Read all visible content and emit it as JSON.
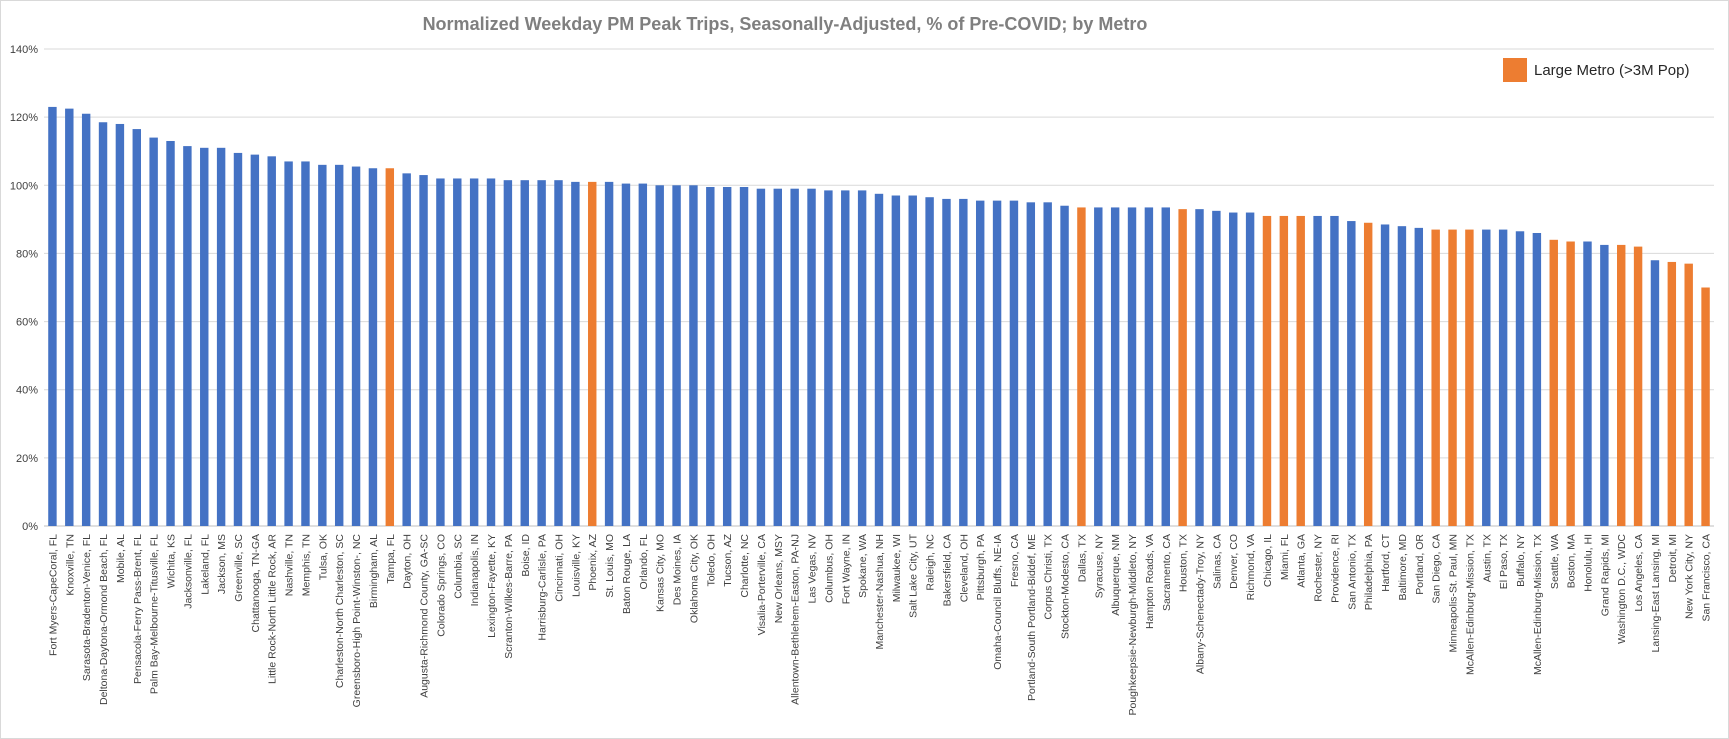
{
  "chart_data": {
    "type": "bar",
    "title": "Normalized Weekday PM Peak Trips, Seasonally-Adjusted, % of Pre-COVID; by Metro",
    "xlabel": "",
    "ylabel": "",
    "ylim": [
      0,
      140
    ],
    "yticks": [
      0,
      20,
      40,
      60,
      80,
      100,
      120,
      140
    ],
    "ytick_suffix": "%",
    "grid": true,
    "legend": {
      "placement": "top-right",
      "label": "Large Metro (>3M Pop)",
      "color": "#ED7D31"
    },
    "colors": {
      "default": "#4472C4",
      "large": "#ED7D31"
    },
    "categories": [
      "Fort Myers-CapeCoral, FL",
      "Knoxville, TN",
      "Sarasota-Bradenton-Venice, FL",
      "Deltona-Daytona-Ormond Beach, FL",
      "Mobile, AL",
      "Pensacola-Ferry Pass-Brent, FL",
      "Palm Bay-Melbourne-Titusville, FL",
      "Wichita, KS",
      "Jacksonville, FL",
      "Lakeland, FL",
      "Jackson, MS",
      "Greenville, SC",
      "Chattanooga, TN-GA",
      "Little Rock-North Little Rock, AR",
      "Nashville, TN",
      "Memphis, TN",
      "Tulsa, OK",
      "Charleston-North Charleston, SC",
      "Greensboro-High Point-Winston-, NC",
      "Birmingham, AL",
      "Tampa, FL",
      "Dayton, OH",
      "Augusta-Richmond County, GA-SC",
      "Colorado Springs, CO",
      "Columbia, SC",
      "Indianapolis, IN",
      "Lexington-Fayette, KY",
      "Scranton-Wilkes-Barre, PA",
      "Boise, ID",
      "Harrisburg-Carlisle, PA",
      "Cincinnati, OH",
      "Louisville, KY",
      "Phoenix, AZ",
      "St. Louis, MO",
      "Baton Rouge, LA",
      "Orlando, FL",
      "Kansas City, MO",
      "Des Moines, IA",
      "Oklahoma City, OK",
      "Toledo, OH",
      "Tucson, AZ",
      "Charlotte, NC",
      "Visalia-Porterville, CA",
      "New Orleans, MSY",
      "Allentown-Bethlehem-Easton, PA-NJ",
      "Las Vegas, NV",
      "Columbus, OH",
      "Fort Wayne, IN",
      "Spokane, WA",
      "Manchester-Nashua, NH",
      "Milwaukee, WI",
      "Salt Lake City, UT",
      "Raleigh, NC",
      "Bakersfield, CA",
      "Cleveland, OH",
      "Pittsburgh, PA",
      "Omaha-Council Bluffs, NE-IA",
      "Fresno, CA",
      "Portland-South Portland-Biddef, ME",
      "Corpus Christi, TX",
      "Stockton-Modesto, CA",
      "Dallas, TX",
      "Syracuse, NY",
      "Albuquerque, NM",
      "Poughkeepsie-Newburgh-Middleto, NY",
      "Hampton Roads, VA",
      "Sacramento, CA",
      "Houston, TX",
      "Albany-Schenectady-Troy, NY",
      "Salinas, CA",
      "Denver, CO",
      "Richmond, VA",
      "Chicago, IL",
      "Miami, FL",
      "Atlanta, GA",
      "Rochester, NY",
      "Providence, RI",
      "San Antonio, TX",
      "Philadelphia, PA",
      "Hartford, CT",
      "Baltimore, MD",
      "Portland, OR",
      "San Diego, CA",
      "Minneapolis-St. Paul, MN",
      "McAllen-Edinburg-Mission, TX",
      "Austin, TX",
      "El Paso, TX",
      "Buffalo, NY",
      "McAllen-Edinburg-Mission, TX",
      "Seattle, WA",
      "Boston, MA",
      "Honolulu, HI",
      "Grand Rapids, MI",
      "Washington D.C., WDC",
      "Los Angeles, CA",
      "Lansing-East Lansing, MI",
      "Detroit, MI",
      "New York City, NY",
      "San Francisco, CA"
    ],
    "values": [
      123,
      122.5,
      121,
      118.5,
      118,
      116.5,
      114,
      113,
      111.5,
      111,
      111,
      109.5,
      109,
      108.5,
      107,
      107,
      106,
      106,
      105.5,
      105,
      105,
      103.5,
      103,
      102,
      102,
      102,
      102,
      101.5,
      101.5,
      101.5,
      101.5,
      101,
      101,
      101,
      100.5,
      100.5,
      100,
      100,
      100,
      99.5,
      99.5,
      99.5,
      99,
      99,
      99,
      99,
      98.5,
      98.5,
      98.5,
      97.5,
      97,
      97,
      96.5,
      96,
      96,
      95.5,
      95.5,
      95.5,
      95,
      95,
      94,
      93.5,
      93.5,
      93.5,
      93.5,
      93.5,
      93.5,
      93,
      93,
      92.5,
      92,
      92,
      91,
      91,
      91,
      91,
      91,
      89.5,
      89,
      88.5,
      88,
      87.5,
      87,
      87,
      87,
      87,
      87,
      86.5,
      86,
      84,
      83.5,
      83.5,
      82.5,
      82.5,
      82,
      78,
      77.5,
      77,
      70
    ],
    "large_metro": [
      false,
      false,
      false,
      false,
      false,
      false,
      false,
      false,
      false,
      false,
      false,
      false,
      false,
      false,
      false,
      false,
      false,
      false,
      false,
      false,
      true,
      false,
      false,
      false,
      false,
      false,
      false,
      false,
      false,
      false,
      false,
      false,
      true,
      false,
      false,
      false,
      false,
      false,
      false,
      false,
      false,
      false,
      false,
      false,
      false,
      false,
      false,
      false,
      false,
      false,
      false,
      false,
      false,
      false,
      false,
      false,
      false,
      false,
      false,
      false,
      false,
      true,
      false,
      false,
      false,
      false,
      false,
      true,
      false,
      false,
      false,
      false,
      true,
      true,
      true,
      false,
      false,
      false,
      true,
      false,
      false,
      false,
      true,
      true,
      true,
      false,
      false,
      false,
      false,
      true,
      true,
      false,
      false,
      true,
      true,
      false,
      true,
      true,
      true
    ]
  }
}
